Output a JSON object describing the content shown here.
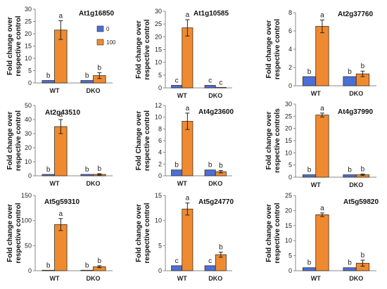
{
  "colors": {
    "series_0": "#4a6fd8",
    "series_100": "#f08a30",
    "bar_stroke": "#3a2e1e",
    "axis": "#888888"
  },
  "legend": {
    "series": [
      "0",
      "100"
    ]
  },
  "chart_data": [
    {
      "type": "bar",
      "title": "At1g16850",
      "ylabel_lines": [
        "Fold change over",
        "respective control"
      ],
      "categories": [
        "WT",
        "DKO"
      ],
      "ylim": [
        0,
        30
      ],
      "yticks": [
        0,
        5,
        10,
        15,
        20,
        25,
        30
      ],
      "series": [
        {
          "name": "0",
          "values": [
            1,
            1
          ],
          "errors": [
            0,
            0
          ],
          "labels": [
            "b",
            "b"
          ]
        },
        {
          "name": "100",
          "values": [
            21.5,
            3
          ],
          "errors": [
            3.8,
            1.2
          ],
          "labels": [
            "a",
            "b"
          ]
        }
      ]
    },
    {
      "type": "bar",
      "title": "At1g10585",
      "ylabel_lines": [
        "Fold change over",
        "respective control"
      ],
      "categories": [
        "WT",
        "DKO"
      ],
      "ylim": [
        0,
        30
      ],
      "yticks": [
        0,
        5,
        10,
        15,
        20,
        25,
        30
      ],
      "series": [
        {
          "name": "0",
          "values": [
            1,
            1
          ],
          "errors": [
            0,
            0
          ],
          "labels": [
            "c",
            "c"
          ]
        },
        {
          "name": "100",
          "values": [
            23.5,
            0.2
          ],
          "errors": [
            3.2,
            0
          ],
          "labels": [
            "a",
            "c"
          ]
        }
      ]
    },
    {
      "type": "bar",
      "title": "At2g37760",
      "ylabel_lines": [
        "Fold change over",
        "respective control"
      ],
      "categories": [
        "WT",
        "DKO"
      ],
      "ylim": [
        0,
        8
      ],
      "yticks": [
        0,
        2,
        4,
        6,
        8
      ],
      "series": [
        {
          "name": "0",
          "values": [
            1,
            1
          ],
          "errors": [
            0,
            0
          ],
          "labels": [
            "b",
            "b"
          ]
        },
        {
          "name": "100",
          "values": [
            6.5,
            1.3
          ],
          "errors": [
            0.7,
            0.3
          ],
          "labels": [
            "a",
            "b"
          ]
        }
      ]
    },
    {
      "type": "bar",
      "title": "At2g43510",
      "ylabel_lines": [
        "Fold change over",
        "respective control"
      ],
      "categories": [
        "WT",
        "DKO"
      ],
      "ylim": [
        0,
        50
      ],
      "yticks": [
        0,
        10,
        20,
        30,
        40,
        50
      ],
      "series": [
        {
          "name": "0",
          "values": [
            1,
            1
          ],
          "errors": [
            0,
            0
          ],
          "labels": [
            "b",
            "b"
          ]
        },
        {
          "name": "100",
          "values": [
            35,
            1
          ],
          "errors": [
            5,
            0.5
          ],
          "labels": [
            "a",
            "b"
          ]
        }
      ]
    },
    {
      "type": "bar",
      "title": "At4g23600",
      "ylabel_lines": [
        "Fold Change over",
        "respective control"
      ],
      "categories": [
        "WT",
        "DKO"
      ],
      "ylim": [
        0,
        12
      ],
      "yticks": [
        0,
        2,
        4,
        6,
        8,
        10,
        12
      ],
      "series": [
        {
          "name": "0",
          "values": [
            1,
            1
          ],
          "errors": [
            0,
            0
          ],
          "labels": [
            "b",
            "b"
          ]
        },
        {
          "name": "100",
          "values": [
            9.3,
            0.7
          ],
          "errors": [
            1.4,
            0.2
          ],
          "labels": [
            "a",
            "b"
          ]
        }
      ]
    },
    {
      "type": "bar",
      "title": "At4g37990",
      "ylabel_lines": [
        "Fold change over",
        "respective controls"
      ],
      "categories": [
        "WT",
        "DKO"
      ],
      "ylim": [
        0,
        30
      ],
      "yticks": [
        0,
        5,
        10,
        15,
        20,
        25,
        30
      ],
      "series": [
        {
          "name": "0",
          "values": [
            1,
            1
          ],
          "errors": [
            0,
            0
          ],
          "labels": [
            "b",
            "b"
          ]
        },
        {
          "name": "100",
          "values": [
            25.5,
            1
          ],
          "errors": [
            0.8,
            0.3
          ],
          "labels": [
            "a",
            "b"
          ]
        }
      ]
    },
    {
      "type": "bar",
      "title": "At5g59310",
      "ylabel_lines": [
        "Fold change over",
        "respective control"
      ],
      "categories": [
        "WT",
        "DKO"
      ],
      "ylim": [
        0,
        150
      ],
      "yticks": [
        0,
        50,
        100,
        150
      ],
      "series": [
        {
          "name": "0",
          "values": [
            1,
            1
          ],
          "errors": [
            0,
            0
          ],
          "labels": [
            "b",
            "b"
          ]
        },
        {
          "name": "100",
          "values": [
            92,
            8
          ],
          "errors": [
            12,
            2
          ],
          "labels": [
            "a",
            "b"
          ]
        }
      ]
    },
    {
      "type": "bar",
      "title": "At5g24770",
      "ylabel_lines": [
        "Fold change over",
        "respective control"
      ],
      "categories": [
        "WT",
        "DKO"
      ],
      "ylim": [
        0,
        15
      ],
      "yticks": [
        0,
        5,
        10,
        15
      ],
      "series": [
        {
          "name": "0",
          "values": [
            1,
            1
          ],
          "errors": [
            0,
            0
          ],
          "labels": [
            "c",
            "c"
          ]
        },
        {
          "name": "100",
          "values": [
            12.3,
            3.2
          ],
          "errors": [
            1.2,
            0.5
          ],
          "labels": [
            "a",
            "b"
          ]
        }
      ]
    },
    {
      "type": "bar",
      "title": "At5g59820",
      "ylabel_lines": [
        "Fold change over",
        "respective control"
      ],
      "categories": [
        "WT",
        "DKO"
      ],
      "ylim": [
        0,
        25
      ],
      "yticks": [
        0,
        5,
        10,
        15,
        20,
        25
      ],
      "series": [
        {
          "name": "0",
          "values": [
            1,
            1
          ],
          "errors": [
            0,
            0
          ],
          "labels": [
            "b",
            "b"
          ]
        },
        {
          "name": "100",
          "values": [
            18.6,
            2.5
          ],
          "errors": [
            0.6,
            1
          ],
          "labels": [
            "a",
            "b"
          ]
        }
      ]
    }
  ]
}
